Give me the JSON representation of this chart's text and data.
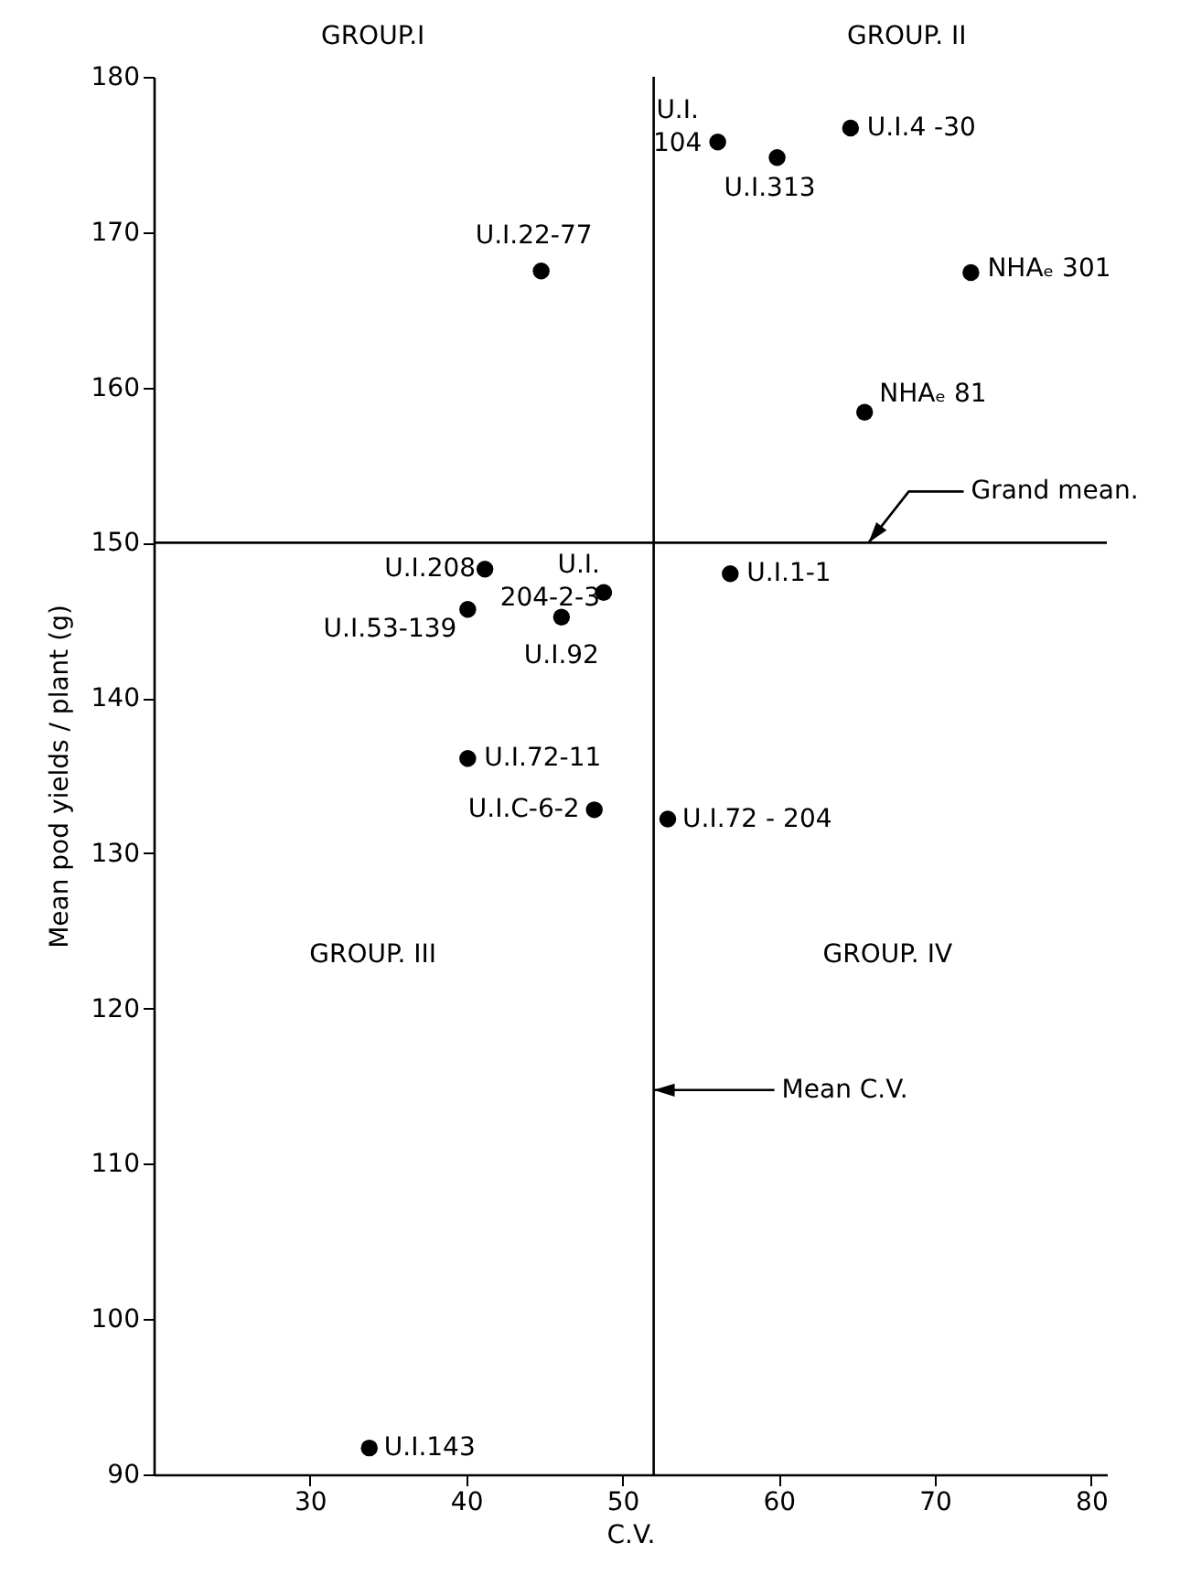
{
  "chart_data": {
    "type": "scatter",
    "xlabel": "C.V.",
    "ylabel": "Mean pod yields / plant (g)",
    "x": [
      44.8,
      56.1,
      59.9,
      64.6,
      72.3,
      65.5,
      41.2,
      48.8,
      40.1,
      46.1,
      56.9,
      40.1,
      48.2,
      52.9,
      33.8
    ],
    "series": [
      {
        "color": "#000000",
        "values": [
          167.5,
          175.8,
          174.8,
          176.7,
          167.4,
          158.4,
          148.3,
          146.8,
          145.7,
          145.2,
          148.0,
          136.1,
          132.8,
          132.2,
          91.7
        ]
      }
    ],
    "xlim": [
      20,
      81
    ],
    "ylim": [
      90,
      180
    ],
    "xticks": [
      30,
      40,
      50,
      60,
      70,
      80
    ],
    "yticks": [
      90,
      100,
      110,
      120,
      130,
      140,
      150,
      160,
      170,
      180
    ],
    "ref_lines": [
      {
        "axis": "y",
        "value": 150,
        "label": "Grand mean."
      },
      {
        "axis": "x",
        "value": 52,
        "label": "Mean C.V."
      }
    ],
    "annotations": [
      "GROUP.I",
      "GROUP. II",
      "GROUP. III",
      "GROUP. IV",
      {
        "text": "U.I.22-77",
        "x": 44.8,
        "y": 167.5
      },
      {
        "text": "U.I.\n104",
        "x": 56.1,
        "y": 175.8
      },
      {
        "text": "U.I.313",
        "x": 59.9,
        "y": 174.8
      },
      {
        "text": "U.I.4 -30",
        "x": 64.6,
        "y": 176.7
      },
      {
        "text": "NHAₑ 301",
        "x": 72.3,
        "y": 167.4
      },
      {
        "text": "NHAₑ 81",
        "x": 65.5,
        "y": 158.4
      },
      {
        "text": "U.I.208",
        "x": 41.2,
        "y": 148.3
      },
      {
        "text": "U.I.\n204-2-3",
        "x": 48.8,
        "y": 146.8
      },
      {
        "text": "U.I.53-139",
        "x": 40.1,
        "y": 145.7
      },
      {
        "text": "U.I.92",
        "x": 46.1,
        "y": 145.2
      },
      {
        "text": "U.I.1-1",
        "x": 56.9,
        "y": 148.0
      },
      {
        "text": "U.I.72-11",
        "x": 40.1,
        "y": 136.1
      },
      {
        "text": "U.I.C-6-2",
        "x": 48.2,
        "y": 132.8
      },
      {
        "text": "U.I.72 - 204",
        "x": 52.9,
        "y": 132.2
      },
      {
        "text": "U.I.143",
        "x": 33.8,
        "y": 91.7
      }
    ],
    "marker": "circle",
    "grid": false
  }
}
